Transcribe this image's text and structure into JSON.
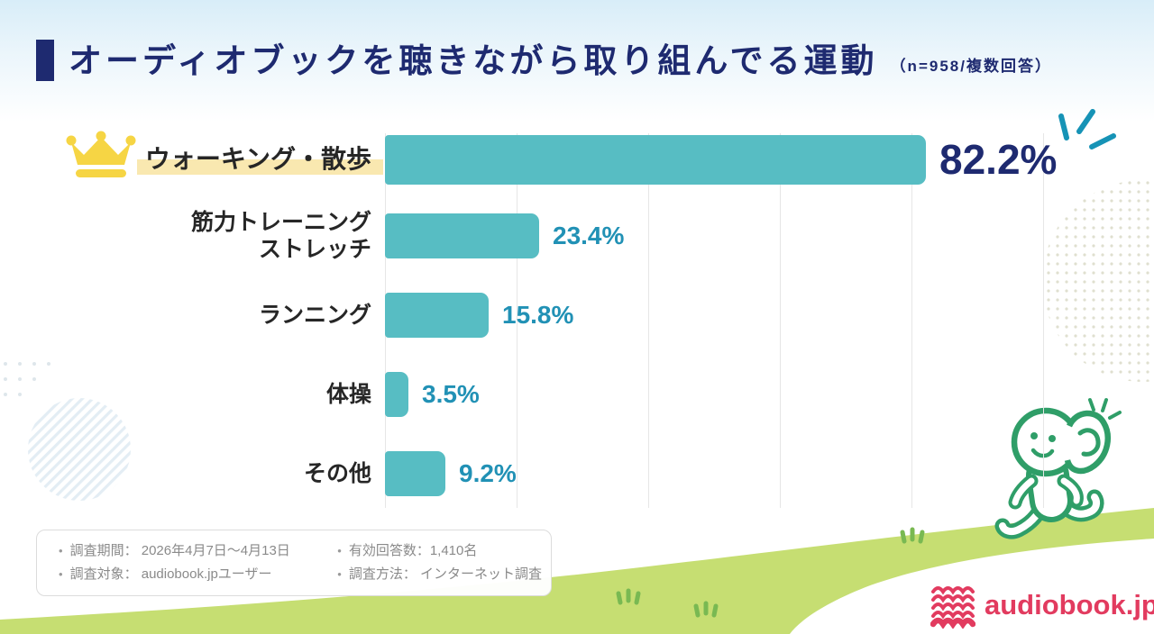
{
  "header": {
    "title": "オーディオブックを聴きながら取り組んでる運動",
    "subtitle": "（n=958/複数回答）"
  },
  "chart_data": {
    "type": "bar",
    "orientation": "horizontal",
    "title": "オーディオブックを聴きながら取り組んでる運動",
    "sample_note": "n=958 / 複数回答",
    "categories": [
      "ウォーキング・散歩",
      "筋力トレーニング\nストレッチ",
      "ランニング",
      "体操",
      "その他"
    ],
    "values": [
      82.2,
      23.4,
      15.8,
      3.5,
      9.2
    ],
    "value_labels": [
      "82.2%",
      "23.4%",
      "15.8%",
      "3.5%",
      "9.2%"
    ],
    "unit": "%",
    "xlim": [
      0,
      100
    ],
    "gridlines_percent": [
      0,
      20,
      40,
      60,
      80,
      100
    ],
    "grid": "vertical-light-gray",
    "legend": "none",
    "top_item_decoration": "crown-icon + yellow marker highlight + sparkle burst"
  },
  "survey_box": {
    "bullet": "•",
    "items_left": [
      "調査期間： 2026年4月7日〜4月13日",
      "調査対象： audiobook.jpユーザー"
    ],
    "items_right": [
      "有効回答数：1,410名",
      "調査方法： インターネット調査"
    ]
  },
  "footer": {
    "logo_text": "audiobook.jp"
  },
  "colors": {
    "navy": "#1e2a70",
    "bar": "#57bdc3",
    "value_teal": "#2191b5",
    "label_dark": "#262626",
    "highlight_yellow": "#f9e8b0",
    "crown_yellow": "#f6d544",
    "hill_green": "#c6de72",
    "grass_green": "#79b952",
    "mascot_green": "#2f9e68",
    "logo_pink": "#e23b5f",
    "sparkle_teal": "#1693b6",
    "bg_top": "#d8edf8",
    "survey_text": "#8a8a8a"
  },
  "icons": {
    "crown": "crown-icon",
    "sparkle": "sparkle-burst-icon",
    "mascot": "walking-listener-mascot",
    "logo_book": "open-book-logo-icon",
    "grass": "grass-tuft-icon"
  }
}
